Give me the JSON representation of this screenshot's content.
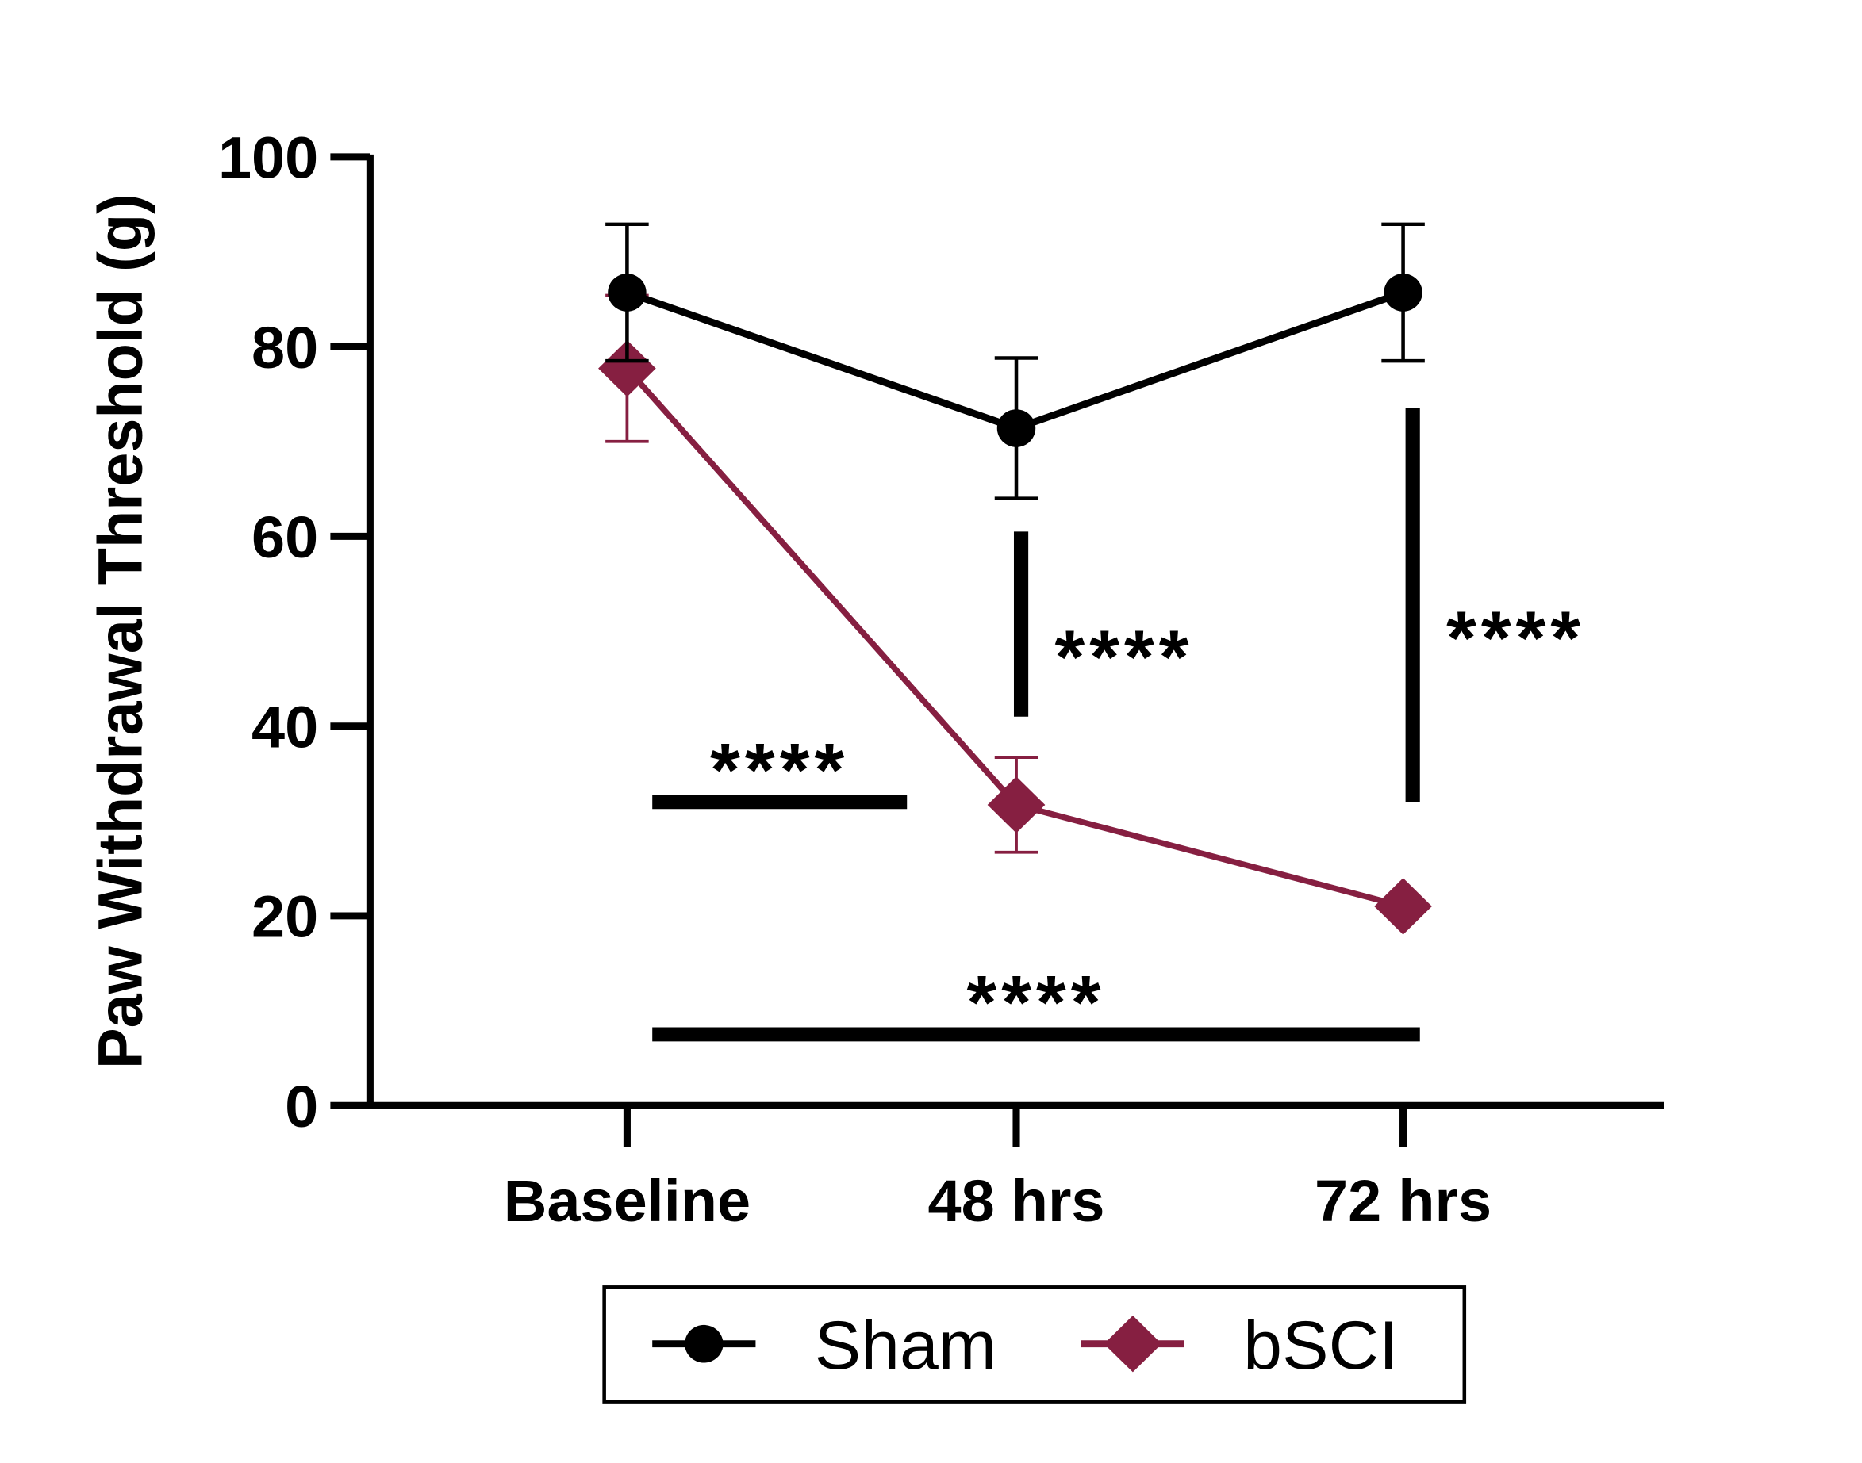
{
  "chart_data": {
    "type": "line",
    "title": "",
    "xlabel": "",
    "ylabel": "Paw Withdrawal Threshold (g)",
    "ylim": [
      0,
      100
    ],
    "yticks": [
      "0",
      "20",
      "40",
      "60",
      "80",
      "100"
    ],
    "categories": [
      "Baseline",
      "48 hrs",
      "72 hrs"
    ],
    "legend_position": "bottom",
    "series": [
      {
        "name": "Sham",
        "marker": "circle",
        "color": "#000000",
        "values": [
          85.7,
          71.4,
          85.7
        ],
        "errors": [
          7.2,
          7.4,
          7.2
        ]
      },
      {
        "name": "bSCI",
        "marker": "diamond",
        "color": "#861F41",
        "values": [
          77.7,
          31.7,
          21.0
        ],
        "errors": [
          7.7,
          5.0,
          0
        ]
      }
    ],
    "annotations": [
      {
        "label": "****",
        "type": "horizontal",
        "from": "Baseline",
        "to": "48 hrs",
        "y": 32
      },
      {
        "label": "****",
        "type": "horizontal",
        "from": "Baseline",
        "to": "72 hrs",
        "y": 7.5
      },
      {
        "label": "****",
        "type": "vertical",
        "at": "48 hrs",
        "y_from": 41,
        "y_to": 60.5
      },
      {
        "label": "****",
        "type": "vertical",
        "at": "72 hrs",
        "y_from": 32,
        "y_to": 73.5
      }
    ]
  }
}
